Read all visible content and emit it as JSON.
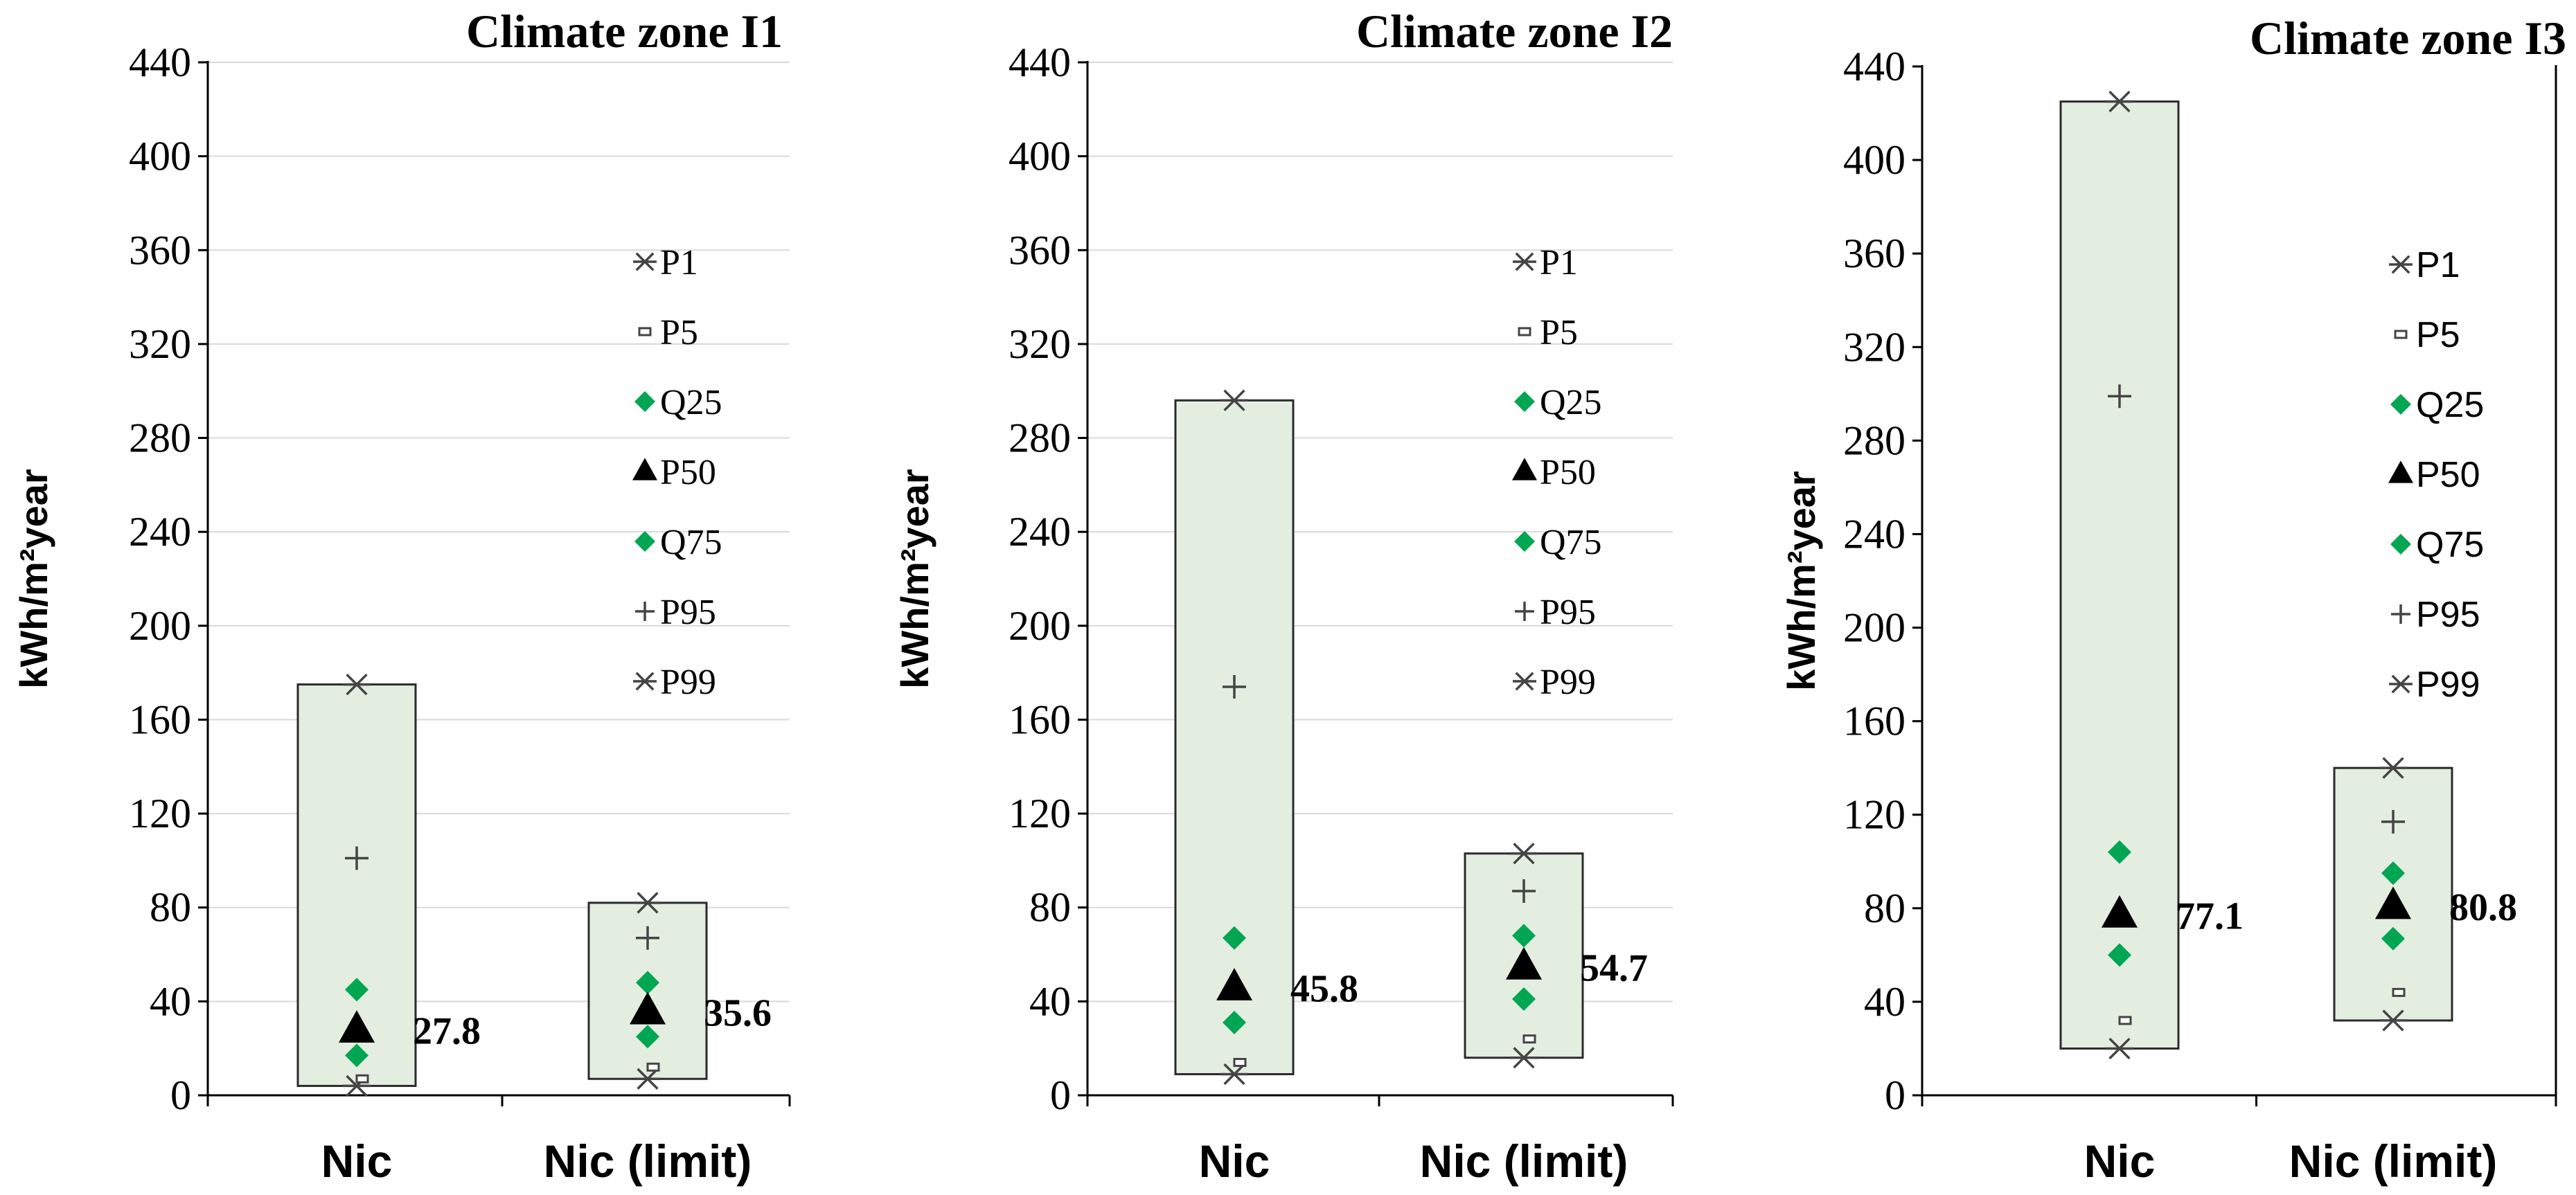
{
  "chart_data": [
    {
      "type": "box-percentile",
      "title": "Climate zone I1",
      "ylabel": "kWh/m²year",
      "ylim": [
        0,
        440
      ],
      "yticks": [
        "0",
        "40",
        "80",
        "120",
        "160",
        "200",
        "240",
        "280",
        "320",
        "360",
        "400",
        "440"
      ],
      "grid": true,
      "legend_position": "right",
      "legend": [
        "P1",
        "P5",
        "Q25",
        "P50",
        "Q75",
        "P95",
        "P99"
      ],
      "categories": [
        "Nic",
        "Nic (limit)"
      ],
      "groups": [
        {
          "name": "Nic",
          "P1": 4,
          "P5": 7,
          "Q25": 17,
          "P50": 27.8,
          "Q75": 45,
          "P95": 101,
          "P99": 175,
          "median_label": "27.8"
        },
        {
          "name": "Nic (limit)",
          "P1": 7,
          "P5": 12,
          "Q25": 25,
          "P50": 35.6,
          "Q75": 48,
          "P95": 67,
          "P99": 82,
          "median_label": "35.6"
        }
      ]
    },
    {
      "type": "box-percentile",
      "title": "Climate zone I2",
      "ylabel": "kWh/m²year",
      "ylim": [
        0,
        440
      ],
      "yticks": [
        "0",
        "40",
        "80",
        "120",
        "160",
        "200",
        "240",
        "280",
        "320",
        "360",
        "400",
        "440"
      ],
      "grid": true,
      "legend_position": "right",
      "legend": [
        "P1",
        "P5",
        "Q25",
        "P50",
        "Q75",
        "P95",
        "P99"
      ],
      "categories": [
        "Nic",
        "Nic (limit)"
      ],
      "groups": [
        {
          "name": "Nic",
          "P1": 9,
          "P5": 14,
          "Q25": 31,
          "P50": 45.8,
          "Q75": 67,
          "P95": 174,
          "P99": 296,
          "median_label": "45.8"
        },
        {
          "name": "Nic (limit)",
          "P1": 16,
          "P5": 24,
          "Q25": 41,
          "P50": 54.7,
          "Q75": 68,
          "P95": 87,
          "P99": 103,
          "median_label": "54.7"
        }
      ]
    },
    {
      "type": "box-percentile",
      "title": "Climate zone I3",
      "ylabel": "kWh/m²year",
      "ylim": [
        0,
        440
      ],
      "yticks": [
        "0",
        "40",
        "80",
        "120",
        "160",
        "200",
        "240",
        "280",
        "320",
        "360",
        "400",
        "440"
      ],
      "grid": false,
      "legend_position": "right",
      "legend": [
        "P1",
        "P5",
        "Q25",
        "P50",
        "Q75",
        "P95",
        "P99"
      ],
      "categories": [
        "Nic",
        "Nic (limit)"
      ],
      "groups": [
        {
          "name": "Nic",
          "P1": 20,
          "P5": 32,
          "Q25": 60,
          "P50": 77.1,
          "Q75": 104,
          "P95": 299,
          "P99": 425,
          "median_label": "77.1"
        },
        {
          "name": "Nic (limit)",
          "P1": 32,
          "P5": 44,
          "Q25": 67,
          "P50": 80.8,
          "Q75": 95,
          "P95": 117,
          "P99": 140,
          "median_label": "80.8"
        }
      ]
    }
  ],
  "colors": {
    "box_fill": "#e3eee1",
    "box_stroke": "#2b2b2b",
    "quartile_marker": "#00a651",
    "median_marker": "#000000",
    "percentile_marker": "#444444",
    "gridline": "#d9d9d9",
    "axis": "#000000"
  }
}
